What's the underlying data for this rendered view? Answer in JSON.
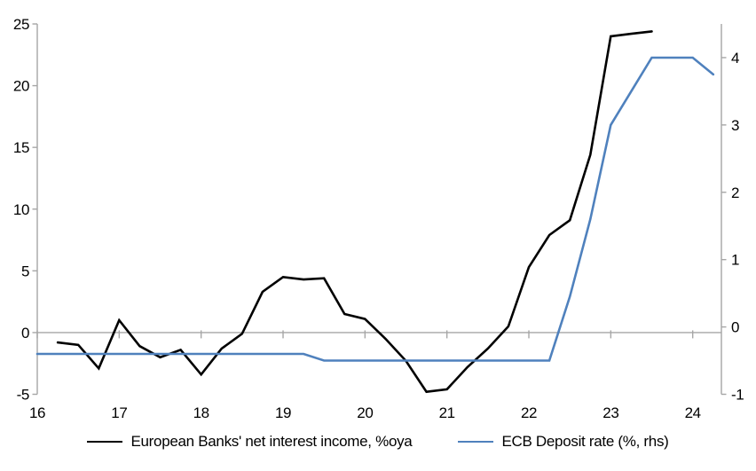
{
  "chart_data": {
    "type": "line",
    "title": "",
    "x_axis": {
      "range": [
        16,
        24.35
      ],
      "tick_positions": [
        16,
        17,
        18,
        19,
        20,
        21,
        22,
        23,
        24
      ],
      "tick_labels": [
        "16",
        "17",
        "18",
        "19",
        "20",
        "21",
        "22",
        "23",
        "24"
      ]
    },
    "left_axis": {
      "range": [
        -5,
        25
      ],
      "ticks": [
        -5,
        0,
        5,
        10,
        15,
        20,
        25
      ]
    },
    "right_axis": {
      "range": [
        -1,
        4.5
      ],
      "ticks": [
        -1,
        0,
        1,
        2,
        3,
        4
      ]
    },
    "grid": "zero-line-only",
    "legend_position": "bottom",
    "series": [
      {
        "name": "European Banks' net interest income, %oya",
        "color": "#000000",
        "axis": "left",
        "x": [
          16.25,
          16.5,
          16.75,
          17.0,
          17.25,
          17.5,
          17.75,
          18.0,
          18.25,
          18.5,
          18.75,
          19.0,
          19.25,
          19.5,
          19.75,
          20.0,
          20.25,
          20.5,
          20.75,
          21.0,
          21.25,
          21.5,
          21.75,
          22.0,
          22.25,
          22.5,
          22.75,
          23.0,
          23.25,
          23.5
        ],
        "values": [
          -0.8,
          -1.0,
          -2.9,
          1.0,
          -1.1,
          -2.0,
          -1.4,
          -3.4,
          -1.3,
          -0.1,
          3.3,
          4.5,
          4.3,
          4.4,
          1.5,
          1.1,
          -0.5,
          -2.3,
          -4.8,
          -4.6,
          -2.8,
          -1.3,
          0.5,
          5.3,
          7.9,
          9.1,
          14.4,
          24.0,
          24.2,
          24.4
        ]
      },
      {
        "name": "ECB Deposit rate (%, rhs)",
        "color": "#4F81BD",
        "axis": "right",
        "x": [
          16.0,
          16.25,
          16.5,
          16.75,
          17.0,
          17.25,
          17.5,
          17.75,
          18.0,
          18.25,
          18.5,
          18.75,
          19.0,
          19.25,
          19.5,
          19.75,
          20.0,
          20.25,
          20.5,
          20.75,
          21.0,
          21.25,
          21.5,
          21.75,
          22.0,
          22.25,
          22.5,
          22.75,
          23.0,
          23.25,
          23.5,
          23.75,
          24.0,
          24.25
        ],
        "values": [
          -0.4,
          -0.4,
          -0.4,
          -0.4,
          -0.4,
          -0.4,
          -0.4,
          -0.4,
          -0.4,
          -0.4,
          -0.4,
          -0.4,
          -0.4,
          -0.4,
          -0.5,
          -0.5,
          -0.5,
          -0.5,
          -0.5,
          -0.5,
          -0.5,
          -0.5,
          -0.5,
          -0.5,
          -0.5,
          -0.5,
          0.45,
          1.6,
          3.0,
          3.5,
          4.0,
          4.0,
          4.0,
          3.75
        ]
      }
    ]
  },
  "colors": {
    "axis_line": "#A6A6A6",
    "zero_line": "#A6A6A6",
    "text": "#000000",
    "background": "#FFFFFF"
  }
}
